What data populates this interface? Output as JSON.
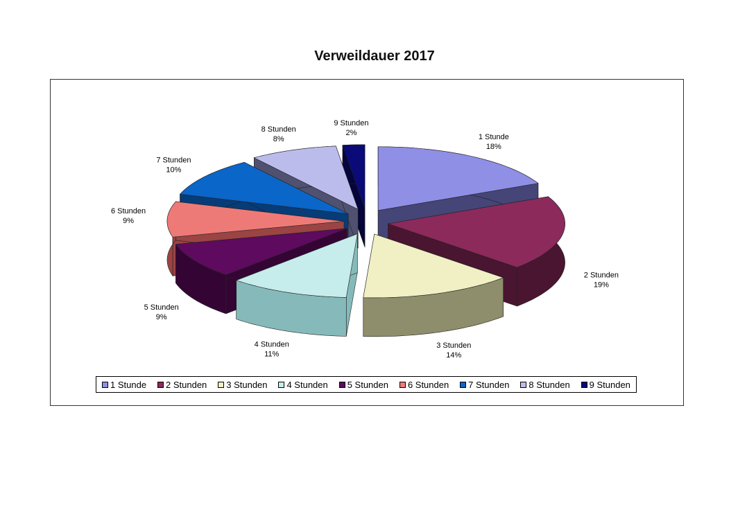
{
  "chart_data": {
    "type": "pie",
    "title": "Verweildauer 2017",
    "legend_placement": "bottom",
    "slices": [
      {
        "label": "1 Stunde",
        "value": 18,
        "value_label": "18%",
        "color": "#8f8fe6",
        "side": "#454578"
      },
      {
        "label": "2 Stunden",
        "value": 19,
        "value_label": "19%",
        "color": "#8c2a5c",
        "side": "#4a1530"
      },
      {
        "label": "3 Stunden",
        "value": 14,
        "value_label": "14%",
        "color": "#f0f0c4",
        "side": "#8e8e6c"
      },
      {
        "label": "4 Stunden",
        "value": 11,
        "value_label": "11%",
        "color": "#c6ecec",
        "side": "#86baba"
      },
      {
        "label": "5 Stunden",
        "value": 9,
        "value_label": "9%",
        "color": "#5e0a5e",
        "side": "#340534"
      },
      {
        "label": "6 Stunden",
        "value": 9,
        "value_label": "9%",
        "color": "#ee7a78",
        "side": "#9a4444"
      },
      {
        "label": "7 Stunden",
        "value": 10,
        "value_label": "10%",
        "color": "#0a66c8",
        "side": "#063c78"
      },
      {
        "label": "8 Stunden",
        "value": 8,
        "value_label": "8%",
        "color": "#bcbcec",
        "side": "#505070"
      },
      {
        "label": "9 Stunden",
        "value": 2,
        "value_label": "2%",
        "color": "#0a0a78",
        "side": "#05053c"
      }
    ]
  }
}
